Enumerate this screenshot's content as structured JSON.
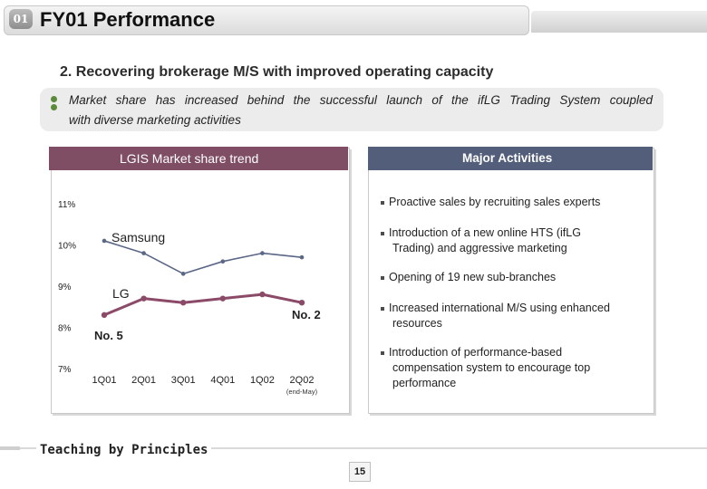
{
  "header": {
    "number": "01",
    "title": "FY01 Performance"
  },
  "section_title": "2.  Recovering brokerage M/S with improved operating capacity",
  "note": {
    "line1": "Market share has increased behind the successful launch of the ifLG Trading System coupled",
    "line2": "with diverse marketing activities"
  },
  "left_panel": {
    "title": "LGIS Market share trend"
  },
  "right_panel": {
    "title": "Major Activities",
    "activities": [
      {
        "line1": "Proactive sales by recruiting sales experts",
        "line2": ""
      },
      {
        "line1": "Introduction of a new online HTS (ifLG",
        "line2": "Trading) and aggressive marketing"
      },
      {
        "line1": "Opening of 19 new sub-branches",
        "line2": ""
      },
      {
        "line1": "Increased international M/S using enhanced",
        "line2": "resources"
      },
      {
        "line1": "Introduction of performance-based",
        "line2": "compensation system to encourage top",
        "line3": "performance"
      }
    ]
  },
  "chart_data": {
    "type": "line",
    "categories": [
      "1Q01",
      "2Q01",
      "3Q01",
      "4Q01",
      "1Q02",
      "2Q02"
    ],
    "category_note": "(end-May)",
    "ylim": [
      7,
      11
    ],
    "y_ticks": [
      "11%",
      "10%",
      "9%",
      "8%",
      "7%"
    ],
    "series": [
      {
        "name": "Samsung",
        "color": "#5a6786",
        "values": [
          10.1,
          9.8,
          9.3,
          9.6,
          9.8,
          9.7
        ]
      },
      {
        "name": "LG",
        "color": "#8b4a68",
        "values": [
          8.3,
          8.7,
          8.6,
          8.7,
          8.8,
          8.6
        ]
      }
    ],
    "annotations": [
      "No. 2",
      "No. 5"
    ]
  },
  "footer": {
    "text": "Teaching by Principles",
    "page": "15"
  },
  "colors": {
    "left_header": "#7f4e64",
    "right_header": "#535e7a",
    "bullet": "#5a8a3a"
  }
}
